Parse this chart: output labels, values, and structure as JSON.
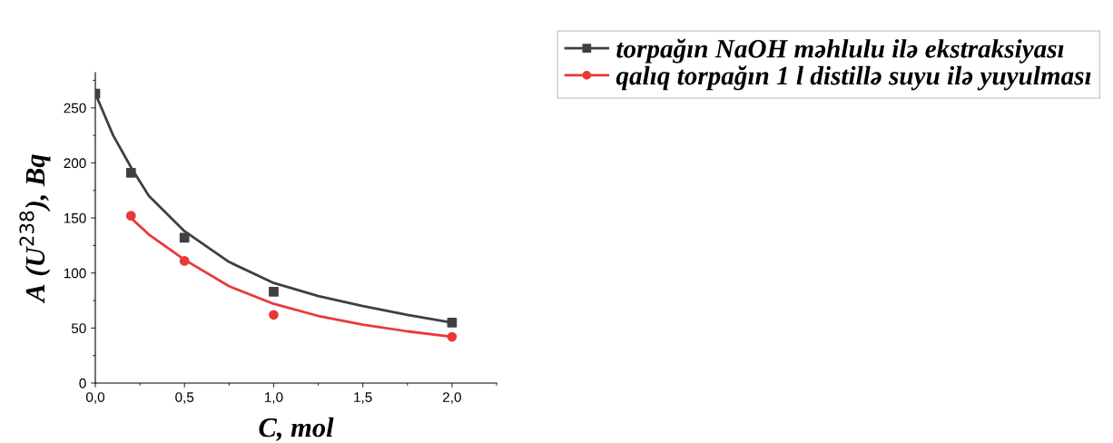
{
  "chart_data": {
    "type": "scatter",
    "xlabel": "C, mol",
    "ylabel": "A (U$^{238}$), Bq",
    "xlim": [
      0,
      2.25
    ],
    "xticks": [
      {
        "value": 0,
        "label": "0,0"
      },
      {
        "value": 0.5,
        "label": "0,5"
      },
      {
        "value": 1.0,
        "label": "1,0"
      },
      {
        "value": 1.5,
        "label": "1,5"
      },
      {
        "value": 2.0,
        "label": "2,0"
      }
    ],
    "ylim": [
      0,
      282
    ],
    "yticks": [
      0,
      50,
      100,
      150,
      200,
      250
    ],
    "grid": false,
    "legend": "top right",
    "series": [
      {
        "name": "torpağın NaOH məhlulu ilə ekstraksiyası",
        "color": "#404040",
        "marker": "square",
        "x": [
          0,
          0.2,
          0.5,
          1.0,
          2.0
        ],
        "values": [
          263,
          191,
          132,
          83,
          55
        ]
      },
      {
        "name": "qalıq torpağın 1 l distillə suyu ilə yuyulması",
        "color": "#e8393a",
        "marker": "circle",
        "x": [
          0.2,
          0.5,
          1.0,
          2.0
        ],
        "values": [
          152,
          111,
          62,
          42
        ]
      },
      {
        "type": "line",
        "color": "#404040",
        "x": [
          0,
          0.1,
          0.2,
          0.3,
          0.5,
          0.75,
          1.0,
          1.25,
          1.5,
          1.75,
          2.0
        ],
        "values": [
          263,
          225,
          196,
          170,
          138,
          110,
          91,
          79,
          70,
          62,
          55
        ]
      },
      {
        "type": "line",
        "color": "#e8393a",
        "x": [
          0.2,
          0.3,
          0.5,
          0.75,
          1.0,
          1.25,
          1.5,
          1.75,
          2.0
        ],
        "values": [
          150,
          135,
          112,
          88,
          72,
          61,
          53,
          47,
          42
        ]
      }
    ]
  }
}
